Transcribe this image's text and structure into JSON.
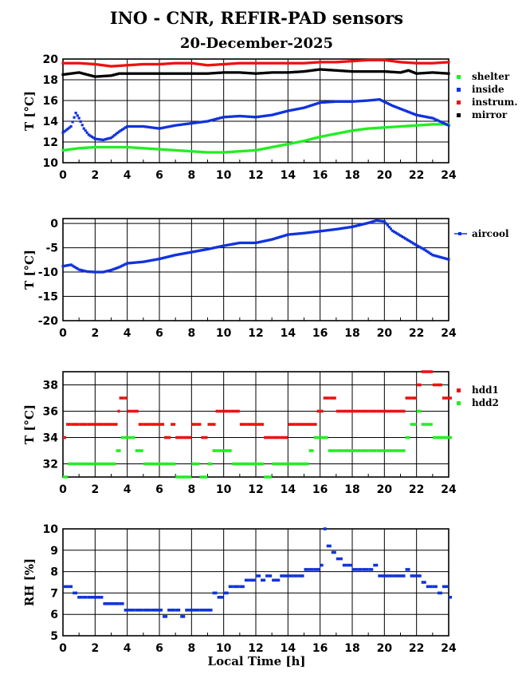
{
  "title": "INO - CNR, REFIR-PAD sensors",
  "date": "20-December-2025",
  "xlabel": "Local Time [h]",
  "colors": {
    "green": "#22ee22",
    "blue": "#1133dd",
    "red": "#ee1111",
    "black": "#000000"
  },
  "chart_data": [
    {
      "type": "scatter",
      "ylabel": "T [°C]",
      "xlim": [
        0,
        24
      ],
      "ylim": [
        10,
        20
      ],
      "xticks": [
        "0",
        "2",
        "4",
        "6",
        "8",
        "10",
        "12",
        "14",
        "16",
        "18",
        "20",
        "22",
        "24"
      ],
      "yticks": [
        "10",
        "12",
        "14",
        "16",
        "18",
        "20"
      ],
      "series": [
        {
          "name": "shelter",
          "color": "#22ee22",
          "x": [
            0,
            1,
            2,
            3,
            4,
            5,
            6,
            7,
            8,
            9,
            10,
            11,
            12,
            13,
            14,
            15,
            16,
            17,
            18,
            19,
            20,
            21,
            22,
            23,
            24
          ],
          "y": [
            11.2,
            11.4,
            11.5,
            11.5,
            11.5,
            11.4,
            11.3,
            11.2,
            11.1,
            11.0,
            11.0,
            11.1,
            11.2,
            11.5,
            11.8,
            12.1,
            12.5,
            12.8,
            13.1,
            13.3,
            13.4,
            13.5,
            13.6,
            13.7,
            13.7
          ]
        },
        {
          "name": "inside",
          "color": "#1133dd",
          "x": [
            0,
            0.5,
            0.8,
            1,
            1.3,
            1.6,
            2,
            2.5,
            3,
            3.5,
            4,
            5,
            6,
            7,
            8,
            9,
            10,
            11,
            12,
            13,
            14,
            15,
            16,
            17,
            18,
            19,
            19.7,
            20.5,
            21,
            22,
            23,
            24
          ],
          "y": [
            12.9,
            13.5,
            14.8,
            14.3,
            13.3,
            12.7,
            12.3,
            12.2,
            12.4,
            13.0,
            13.5,
            13.5,
            13.3,
            13.6,
            13.8,
            14.0,
            14.4,
            14.5,
            14.4,
            14.6,
            15.0,
            15.3,
            15.8,
            15.9,
            15.9,
            16.0,
            16.1,
            15.5,
            15.2,
            14.6,
            14.3,
            13.6
          ]
        },
        {
          "name": "instrum.",
          "color": "#ee1111",
          "x": [
            0,
            1,
            2,
            3,
            4,
            5,
            6,
            7,
            8,
            9,
            10,
            11,
            12,
            13,
            14,
            15,
            16,
            17,
            18,
            19,
            20,
            21,
            22,
            23,
            24
          ],
          "y": [
            19.6,
            19.6,
            19.5,
            19.3,
            19.4,
            19.5,
            19.5,
            19.6,
            19.6,
            19.4,
            19.5,
            19.6,
            19.6,
            19.6,
            19.6,
            19.6,
            19.7,
            19.7,
            19.8,
            19.9,
            19.9,
            19.7,
            19.6,
            19.6,
            19.7
          ]
        },
        {
          "name": "mirror",
          "color": "#000000",
          "x": [
            0,
            0.5,
            1,
            1.5,
            2,
            3,
            3.5,
            4,
            5,
            6,
            7,
            8,
            9,
            10,
            11,
            12,
            13,
            14,
            15,
            16,
            17,
            18,
            19,
            20,
            21,
            21.5,
            22,
            23,
            24
          ],
          "y": [
            18.5,
            18.6,
            18.7,
            18.5,
            18.3,
            18.4,
            18.6,
            18.6,
            18.6,
            18.6,
            18.6,
            18.6,
            18.6,
            18.7,
            18.7,
            18.6,
            18.7,
            18.7,
            18.8,
            19.0,
            18.9,
            18.8,
            18.8,
            18.8,
            18.7,
            18.9,
            18.6,
            18.7,
            18.6
          ]
        }
      ]
    },
    {
      "type": "scatter",
      "ylabel": "T [°C]",
      "xlim": [
        0,
        24
      ],
      "ylim": [
        -20,
        1
      ],
      "xticks": [
        "0",
        "2",
        "4",
        "6",
        "8",
        "10",
        "12",
        "14",
        "16",
        "18",
        "20",
        "22",
        "24"
      ],
      "yticks": [
        "0",
        "-5",
        "-10",
        "-15",
        "-20"
      ],
      "series": [
        {
          "name": "aircool",
          "color": "#1133dd",
          "x": [
            0,
            0.5,
            1,
            1.5,
            2,
            2.5,
            3,
            3.5,
            4,
            5,
            6,
            7,
            8,
            9,
            10,
            11,
            12,
            13,
            14,
            15,
            16,
            17,
            18,
            19,
            19.5,
            20,
            20.5,
            21,
            22,
            22.5,
            23,
            24
          ],
          "y": [
            -8.8,
            -8.5,
            -9.5,
            -9.9,
            -10.0,
            -10.0,
            -9.6,
            -9.0,
            -8.2,
            -7.9,
            -7.3,
            -6.5,
            -5.9,
            -5.3,
            -4.6,
            -4.0,
            -4.0,
            -3.3,
            -2.3,
            -2.0,
            -1.6,
            -1.2,
            -0.7,
            0.1,
            0.6,
            0.4,
            -1.5,
            -2.5,
            -4.5,
            -5.4,
            -6.5,
            -7.4
          ]
        }
      ]
    },
    {
      "type": "scatter",
      "ylabel": "T [°C]",
      "xlim": [
        0,
        24
      ],
      "ylim": [
        31,
        39
      ],
      "xticks": [
        "0",
        "2",
        "4",
        "6",
        "8",
        "10",
        "12",
        "14",
        "16",
        "18",
        "20",
        "22",
        "24"
      ],
      "yticks": [
        "32",
        "34",
        "36",
        "38"
      ],
      "series": [
        {
          "name": "hdd1",
          "color": "#ee1111",
          "x": [
            0,
            0.2,
            0.5,
            1,
            1.5,
            2,
            2.5,
            3,
            3.4,
            3.5,
            3.8,
            4.0,
            4.3,
            4.7,
            5,
            5.5,
            6,
            6.3,
            6.7,
            7,
            7.5,
            8,
            8.3,
            8.6,
            9,
            9.5,
            10,
            10.5,
            11,
            11.5,
            12,
            12.5,
            13,
            13.5,
            14,
            14.5,
            15,
            15.5,
            15.8,
            16.2,
            16.6,
            17,
            17.5,
            18,
            18.5,
            19,
            19.5,
            20,
            20.5,
            21,
            21.3,
            21.7,
            22,
            22.3,
            22.6,
            23,
            23.3,
            23.6,
            24
          ],
          "y": [
            34,
            35,
            35,
            35,
            35,
            35,
            35,
            35,
            36,
            37,
            37,
            36,
            36,
            35,
            35,
            35,
            35,
            34,
            35,
            34,
            34,
            35,
            35,
            34,
            35,
            36,
            36,
            36,
            35,
            35,
            35,
            34,
            34,
            34,
            35,
            35,
            35,
            35,
            36,
            37,
            37,
            36,
            36,
            36,
            36,
            36,
            36,
            36,
            36,
            36,
            37,
            37,
            38,
            39,
            39,
            38,
            38,
            37,
            37
          ]
        },
        {
          "name": "hdd2",
          "color": "#22ee22",
          "x": [
            0,
            0.3,
            0.7,
            1,
            1.5,
            2,
            2.5,
            3,
            3.3,
            3.6,
            4,
            4.5,
            5,
            5.5,
            6,
            6.5,
            7,
            7.5,
            8,
            8.5,
            9,
            9.3,
            9.6,
            10,
            10.5,
            11,
            11.5,
            12,
            12.5,
            13,
            13.5,
            14,
            14.5,
            15,
            15.3,
            15.6,
            16,
            16.5,
            17,
            17.5,
            18,
            18.5,
            19,
            19.5,
            20,
            20.5,
            21,
            21.3,
            21.6,
            22,
            22.3,
            22.6,
            23,
            23.3,
            23.6,
            24
          ],
          "y": [
            31,
            32,
            32,
            32,
            32,
            32,
            32,
            32,
            33,
            34,
            34,
            33,
            32,
            32,
            32,
            32,
            31,
            31,
            32,
            31,
            32,
            33,
            33,
            33,
            32,
            32,
            32,
            32,
            31,
            32,
            32,
            32,
            32,
            32,
            33,
            34,
            34,
            33,
            33,
            33,
            33,
            33,
            33,
            33,
            33,
            33,
            33,
            34,
            35,
            36,
            35,
            35,
            34,
            34,
            34,
            34
          ]
        }
      ]
    },
    {
      "type": "scatter",
      "ylabel": "RH [%]",
      "xlim": [
        0,
        24
      ],
      "ylim": [
        5,
        10
      ],
      "xticks": [
        "0",
        "2",
        "4",
        "6",
        "8",
        "10",
        "12",
        "14",
        "16",
        "18",
        "20",
        "22",
        "24"
      ],
      "yticks": [
        "5",
        "6",
        "7",
        "8",
        "9",
        "10"
      ],
      "series": [
        {
          "name": "RH",
          "color": "#1133dd",
          "x": [
            0,
            0.3,
            0.6,
            0.9,
            1.2,
            1.5,
            2,
            2.5,
            3,
            3.5,
            3.8,
            4,
            4.5,
            5,
            5.5,
            6,
            6.2,
            6.5,
            7,
            7.3,
            7.6,
            8,
            8.5,
            9,
            9.3,
            9.6,
            10,
            10.3,
            10.6,
            11,
            11.3,
            11.6,
            12,
            12.3,
            12.6,
            13,
            13.5,
            14,
            14.3,
            14.6,
            15,
            15.3,
            15.6,
            16,
            16.2,
            16.4,
            16.7,
            17,
            17.4,
            17.7,
            18,
            18.3,
            18.6,
            19,
            19.3,
            19.6,
            20,
            20.5,
            21,
            21.3,
            21.6,
            22,
            22.3,
            22.6,
            23,
            23.3,
            23.6,
            24
          ],
          "y": [
            7.3,
            7.3,
            7.0,
            6.8,
            6.8,
            6.8,
            6.8,
            6.5,
            6.5,
            6.5,
            6.2,
            6.2,
            6.2,
            6.2,
            6.2,
            6.2,
            5.9,
            6.2,
            6.2,
            5.9,
            6.2,
            6.2,
            6.2,
            6.2,
            7.0,
            6.8,
            7.0,
            7.3,
            7.3,
            7.3,
            7.6,
            7.6,
            7.8,
            7.6,
            7.8,
            7.6,
            7.8,
            7.8,
            7.8,
            7.8,
            8.1,
            8.1,
            8.1,
            8.3,
            10.0,
            9.2,
            8.9,
            8.6,
            8.3,
            8.3,
            8.1,
            8.1,
            8.1,
            8.1,
            8.3,
            7.8,
            7.8,
            7.8,
            7.8,
            8.1,
            7.8,
            7.8,
            7.5,
            7.3,
            7.3,
            7.0,
            7.3,
            6.8
          ]
        }
      ]
    }
  ]
}
